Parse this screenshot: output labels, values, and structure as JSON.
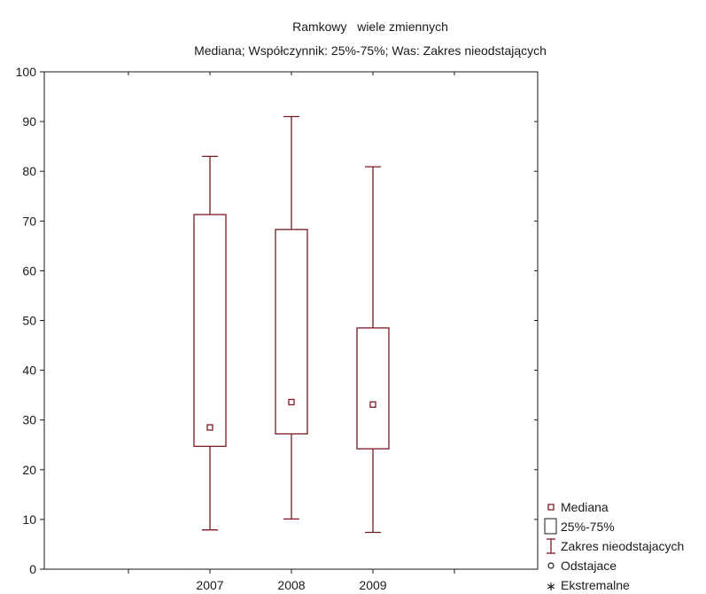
{
  "chart_data": {
    "type": "box",
    "title": "Ramkowy   wiele zmiennych",
    "subtitle": "Mediana; Współczynnik: 25%-75%; Was: Zakres nieodstających",
    "xlabel": "",
    "ylabel": "",
    "ylim": [
      0,
      100
    ],
    "yticks": [
      0,
      10,
      20,
      30,
      40,
      50,
      60,
      70,
      80,
      90,
      100
    ],
    "grid": false,
    "legend_position": "bottom-right",
    "categories": [
      "2007",
      "2008",
      "2009"
    ],
    "boxes": [
      {
        "category": "2007",
        "median": 28.5,
        "q1": 24.7,
        "q3": 71.3,
        "whisker_low": 7.9,
        "whisker_high": 83.0
      },
      {
        "category": "2008",
        "median": 33.6,
        "q1": 27.2,
        "q3": 68.3,
        "whisker_low": 10.1,
        "whisker_high": 91.0
      },
      {
        "category": "2009",
        "median": 33.1,
        "q1": 24.2,
        "q3": 48.5,
        "whisker_low": 7.4,
        "whisker_high": 80.9
      }
    ],
    "legend": [
      {
        "key": "median",
        "label": "Mediana"
      },
      {
        "key": "box",
        "label": "25%-75%"
      },
      {
        "key": "range",
        "label": "Zakres nieodstajacych"
      },
      {
        "key": "outlier",
        "label": "Odstajace"
      },
      {
        "key": "extreme",
        "label": "Ekstremalne"
      }
    ],
    "colors": {
      "box": "#7b1a22",
      "axis": "#1a1a1a",
      "background": "#ffffff"
    }
  }
}
